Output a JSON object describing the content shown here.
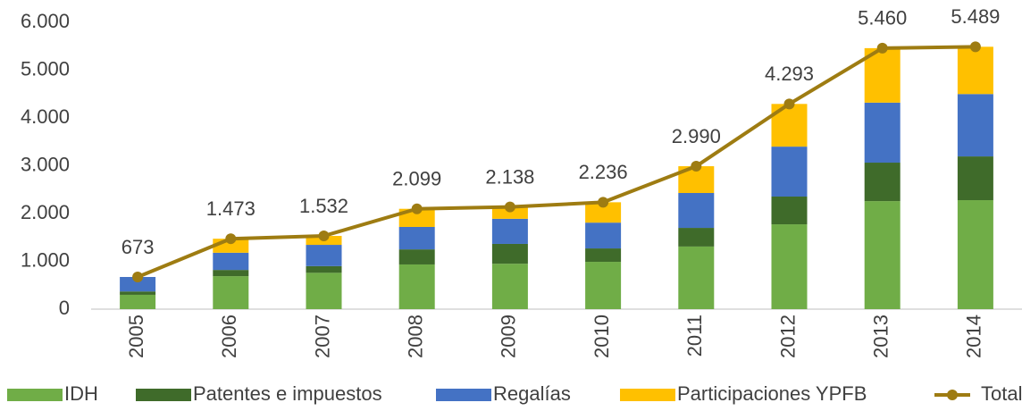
{
  "chart_data": {
    "type": "stacked_bar_line",
    "categories": [
      "2005",
      "2006",
      "2007",
      "2008",
      "2009",
      "2010",
      "2011",
      "2012",
      "2013",
      "2014"
    ],
    "series": [
      {
        "name": "IDH",
        "color": "#70ad47",
        "values": [
          300,
          690,
          760,
          935,
          950,
          990,
          1310,
          1775,
          2260,
          2280
        ]
      },
      {
        "name": "Patentes e impuestos",
        "color": "#3f6b2a",
        "values": [
          70,
          130,
          140,
          315,
          415,
          280,
          390,
          580,
          805,
          915
        ]
      },
      {
        "name": "Regalías",
        "color": "#4472c4",
        "values": [
          303,
          360,
          445,
          470,
          525,
          540,
          730,
          1045,
          1255,
          1305
        ]
      },
      {
        "name": "Participaciones YPFB",
        "color": "#ffc000",
        "values": [
          0,
          293,
          187,
          379,
          248,
          426,
          560,
          893,
          1140,
          989
        ]
      },
      {
        "name": "Total",
        "type": "line",
        "color": "#9e7c12",
        "values": [
          673,
          1473,
          1532,
          2099,
          2138,
          2236,
          2990,
          4293,
          5460,
          5489
        ],
        "value_labels": [
          "673",
          "1.473",
          "1.532",
          "2.099",
          "2.138",
          "2.236",
          "2.990",
          "4.293",
          "5.460",
          "5.489"
        ]
      }
    ],
    "ylim": [
      0,
      6000
    ],
    "yticks": [
      0,
      {
        "value": 1000,
        "label": "1.000"
      },
      {
        "value": 2000,
        "label": "2.000"
      },
      {
        "value": 3000,
        "label": "3.000"
      },
      {
        "value": 4000,
        "label": "4.000"
      },
      {
        "value": 5000,
        "label": "5.000"
      },
      {
        "value": 6000,
        "label": "6.000"
      }
    ],
    "legend": "bottom"
  }
}
